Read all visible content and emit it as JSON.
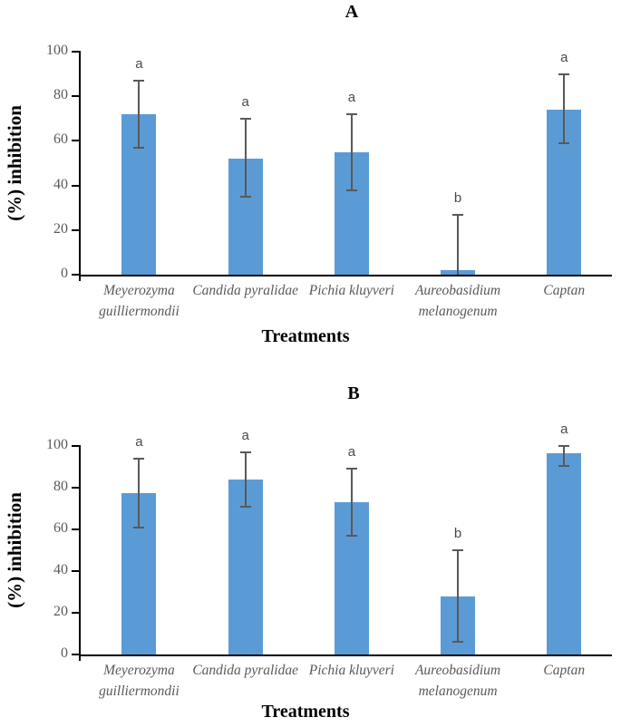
{
  "figure_title": "",
  "bar_color": "#5B9BD5",
  "error_color": "#595959",
  "chart_data": [
    {
      "type": "bar",
      "panel": "A",
      "title": "A",
      "xlabel": "Treatments",
      "ylabel": "(%) inhibition",
      "ylim": [
        0,
        100
      ],
      "yticks": [
        0,
        20,
        40,
        60,
        80,
        100
      ],
      "grid": false,
      "legend": false,
      "categories": [
        "Meyerozyma guilliermondii",
        "Candida pyralidae",
        "Pichia kluyveri",
        "Aureobasidium melanogenum",
        "Captan"
      ],
      "values": [
        72,
        52,
        55,
        2,
        74
      ],
      "error_low": [
        57,
        35,
        38,
        0,
        59
      ],
      "error_high": [
        87,
        70,
        72,
        27,
        90
      ],
      "sig_letters": [
        "a",
        "a",
        "a",
        "b",
        "a"
      ],
      "bar_color": "#5B9BD5",
      "error_color": "#595959"
    },
    {
      "type": "bar",
      "panel": "B",
      "title": "B",
      "xlabel": "Treatments",
      "ylabel": "(%) inhibition",
      "ylim": [
        0,
        100
      ],
      "yticks": [
        0,
        20,
        40,
        60,
        80,
        100
      ],
      "grid": false,
      "legend": false,
      "categories": [
        "Meyerozyma guilliermondii",
        "Candida pyralidae",
        "Pichia kluyveri",
        "Aureobasidium melanogenum",
        "Captan"
      ],
      "values": [
        77.5,
        84,
        73,
        28,
        96.5
      ],
      "error_low": [
        61,
        71,
        57,
        6,
        90.5
      ],
      "error_high": [
        94,
        97,
        89,
        50,
        100
      ],
      "sig_letters": [
        "a",
        "a",
        "a",
        "b",
        "a"
      ],
      "bar_color": "#5B9BD5",
      "error_color": "#595959"
    }
  ]
}
